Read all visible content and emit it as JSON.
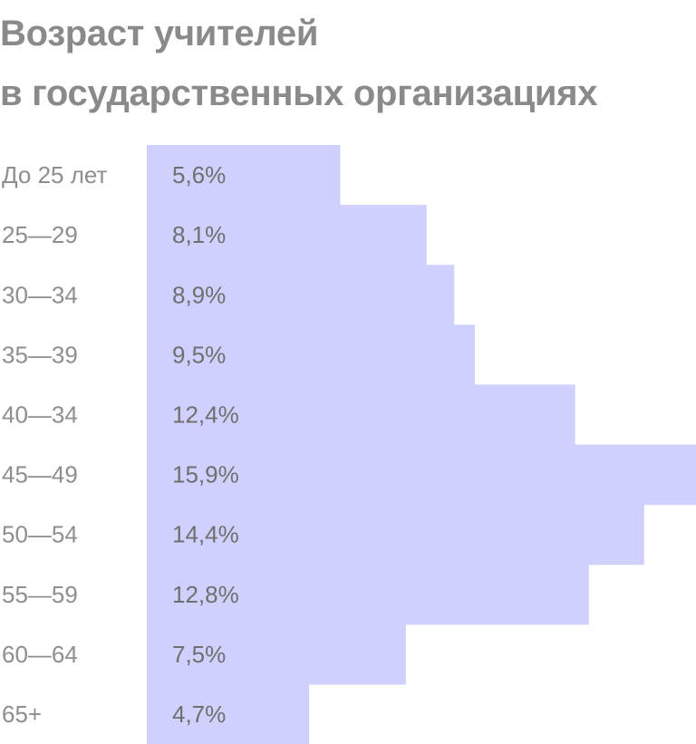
{
  "chart_data": {
    "type": "bar",
    "orientation": "horizontal",
    "title_lines": [
      "Возраст учителей",
      "в государственных организациях"
    ],
    "categories": [
      "До 25 лет",
      "25—29",
      "30—34",
      "35—39",
      "40—34",
      "45—49",
      "50—54",
      "55—59",
      "60—64",
      "65+"
    ],
    "values": [
      5.6,
      8.1,
      8.9,
      9.5,
      12.4,
      15.9,
      14.4,
      12.8,
      7.5,
      4.7
    ],
    "value_labels": [
      "5,6%",
      "8,1%",
      "8,9%",
      "9,5%",
      "12,4%",
      "15,9%",
      "14,4%",
      "12,8%",
      "7,5%",
      "4,7%"
    ],
    "unit": "%",
    "bar_color": "#d0d0ff",
    "xlim": [
      0,
      15.9
    ],
    "grid": false,
    "legend": "none"
  }
}
